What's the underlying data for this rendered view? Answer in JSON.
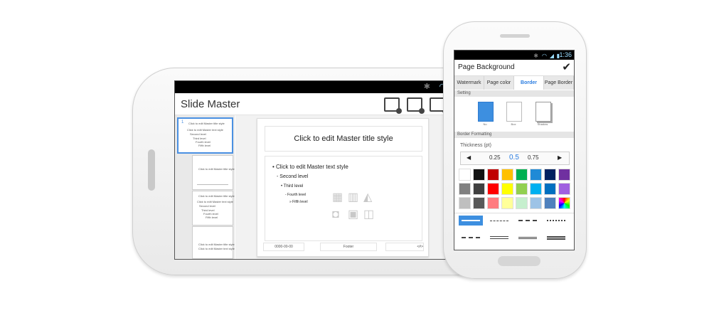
{
  "landscape": {
    "app_title": "Slide Master",
    "toolbar_icons": [
      "new-slide-master-icon",
      "new-layout-icon",
      "preview-icon"
    ],
    "thumbnails": [
      {
        "number": "1",
        "title": "Click to edit Master title style",
        "lines": [
          "Click to edit Master text style",
          "Second level",
          "Third level",
          "Fourth level",
          "Fifth level"
        ]
      },
      {
        "title": "Click to edit Master title style"
      },
      {
        "title": "Click to edit Master title style",
        "lines": [
          "Click to edit Master text style",
          "Second level",
          "Third level",
          "Fourth level",
          "Fifth level"
        ]
      },
      {
        "title": "Click to edit Master title style",
        "lines": [
          "Click to edit Master text style"
        ]
      }
    ],
    "slide": {
      "title": "Click to edit Master title style",
      "levels": [
        "• Click to edit Master text style",
        "- Second level",
        "• Third level",
        "- Fourth level",
        "» Fifth level"
      ],
      "placeholder_icons": [
        "table-icon",
        "chart-icon",
        "picture-icon",
        "camera-icon",
        "video-icon",
        "movie-icon"
      ],
      "footer_left": "0000-00-00",
      "footer_center": "Footer",
      "footer_right": "<#>"
    }
  },
  "portrait": {
    "time": "1:36",
    "header_title": "Page Background",
    "tabs": [
      {
        "label": "Watermark",
        "active": false
      },
      {
        "label": "Page color",
        "active": false
      },
      {
        "label": "Border",
        "active": true
      },
      {
        "label": "Page Border",
        "active": false
      }
    ],
    "setting_label": "Setting",
    "setting_options": [
      "No",
      "Box",
      "Shadow"
    ],
    "border_formatting_label": "Border Formatting",
    "thickness_label": "Thickness (pt)",
    "thickness_values": [
      "0.25",
      "0.5",
      "0.75"
    ],
    "thickness_selected": "0.5",
    "accent": "#3d8fe0",
    "colors": [
      "#ffffff",
      "#111111",
      "#c00000",
      "#ffc000",
      "#00b050",
      "#1f8ad6",
      "#002060",
      "#7030a0",
      "#808080",
      "#404040",
      "#ff0000",
      "#ffff00",
      "#92d050",
      "#00b0f0",
      "#0070c0",
      "#a060e0",
      "#bfbfbf",
      "#595959",
      "#ff7c80",
      "#ffff99",
      "#c6efce",
      "#9dc3e6",
      "#4f81bd",
      "rainbow"
    ],
    "line_styles": [
      "solid",
      "dash-dot",
      "dashed",
      "dotted",
      "dash-dot-dot",
      "double",
      "thick-thin",
      "thin-thick"
    ]
  }
}
